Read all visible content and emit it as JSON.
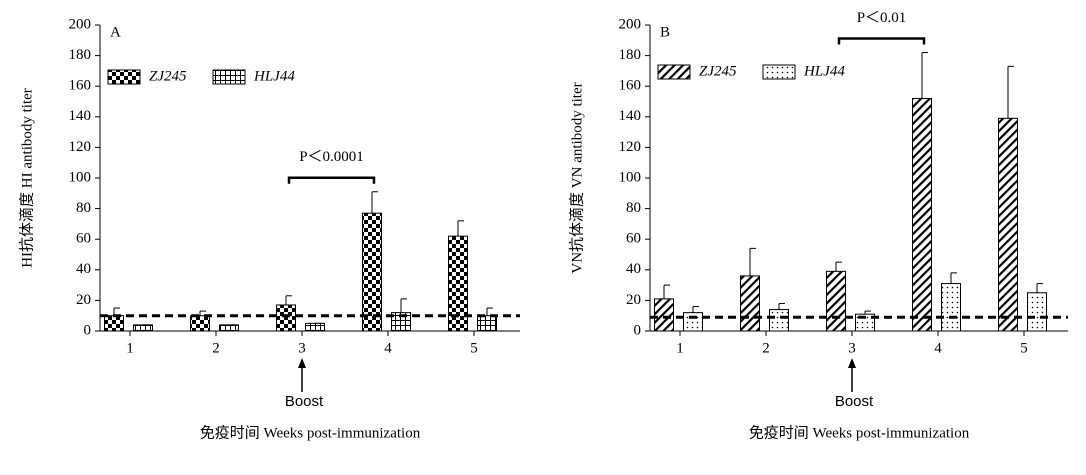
{
  "chart_data": [
    {
      "type": "bar",
      "panel": "A",
      "y_label": "HI抗体滴度 HI antibody titer",
      "x_label": "免疫时间 Weeks post-immunization",
      "categories": [
        "1",
        "2",
        "3",
        "4",
        "5"
      ],
      "series": [
        {
          "name": "ZJ245",
          "color": "#000000",
          "pattern": "checker",
          "values": [
            10,
            10,
            17,
            77,
            62
          ],
          "errors": [
            5,
            3,
            6,
            14,
            10
          ]
        },
        {
          "name": "HLJ44",
          "color": "#000000",
          "pattern": "grid",
          "values": [
            4,
            4,
            5,
            12,
            10
          ],
          "errors": [
            0,
            0,
            0,
            9,
            5
          ]
        }
      ],
      "threshold": 10,
      "annotation": "P＜0.0001",
      "boost": "Boost",
      "ylim": [
        0,
        200
      ],
      "yticks": [
        0,
        20,
        40,
        60,
        80,
        100,
        120,
        140,
        160,
        180,
        200
      ]
    },
    {
      "type": "bar",
      "panel": "B",
      "y_label": "VN抗体滴度 VN antibody titer",
      "x_label": "免疫时间 Weeks post-immunization",
      "categories": [
        "1",
        "2",
        "3",
        "4",
        "5"
      ],
      "series": [
        {
          "name": "ZJ245",
          "color": "#000000",
          "pattern": "hatch",
          "values": [
            21,
            36,
            39,
            152,
            139
          ],
          "errors": [
            9,
            18,
            6,
            30,
            34
          ]
        },
        {
          "name": "HLJ44",
          "color": "#000000",
          "pattern": "dots",
          "values": [
            12,
            14,
            11,
            31,
            25
          ],
          "errors": [
            4,
            4,
            2,
            7,
            6
          ]
        }
      ],
      "threshold": 9,
      "annotation": "P＜0.01",
      "boost": "Boost",
      "ylim": [
        0,
        200
      ],
      "yticks": [
        0,
        20,
        40,
        60,
        80,
        100,
        120,
        140,
        160,
        180,
        200
      ]
    }
  ]
}
